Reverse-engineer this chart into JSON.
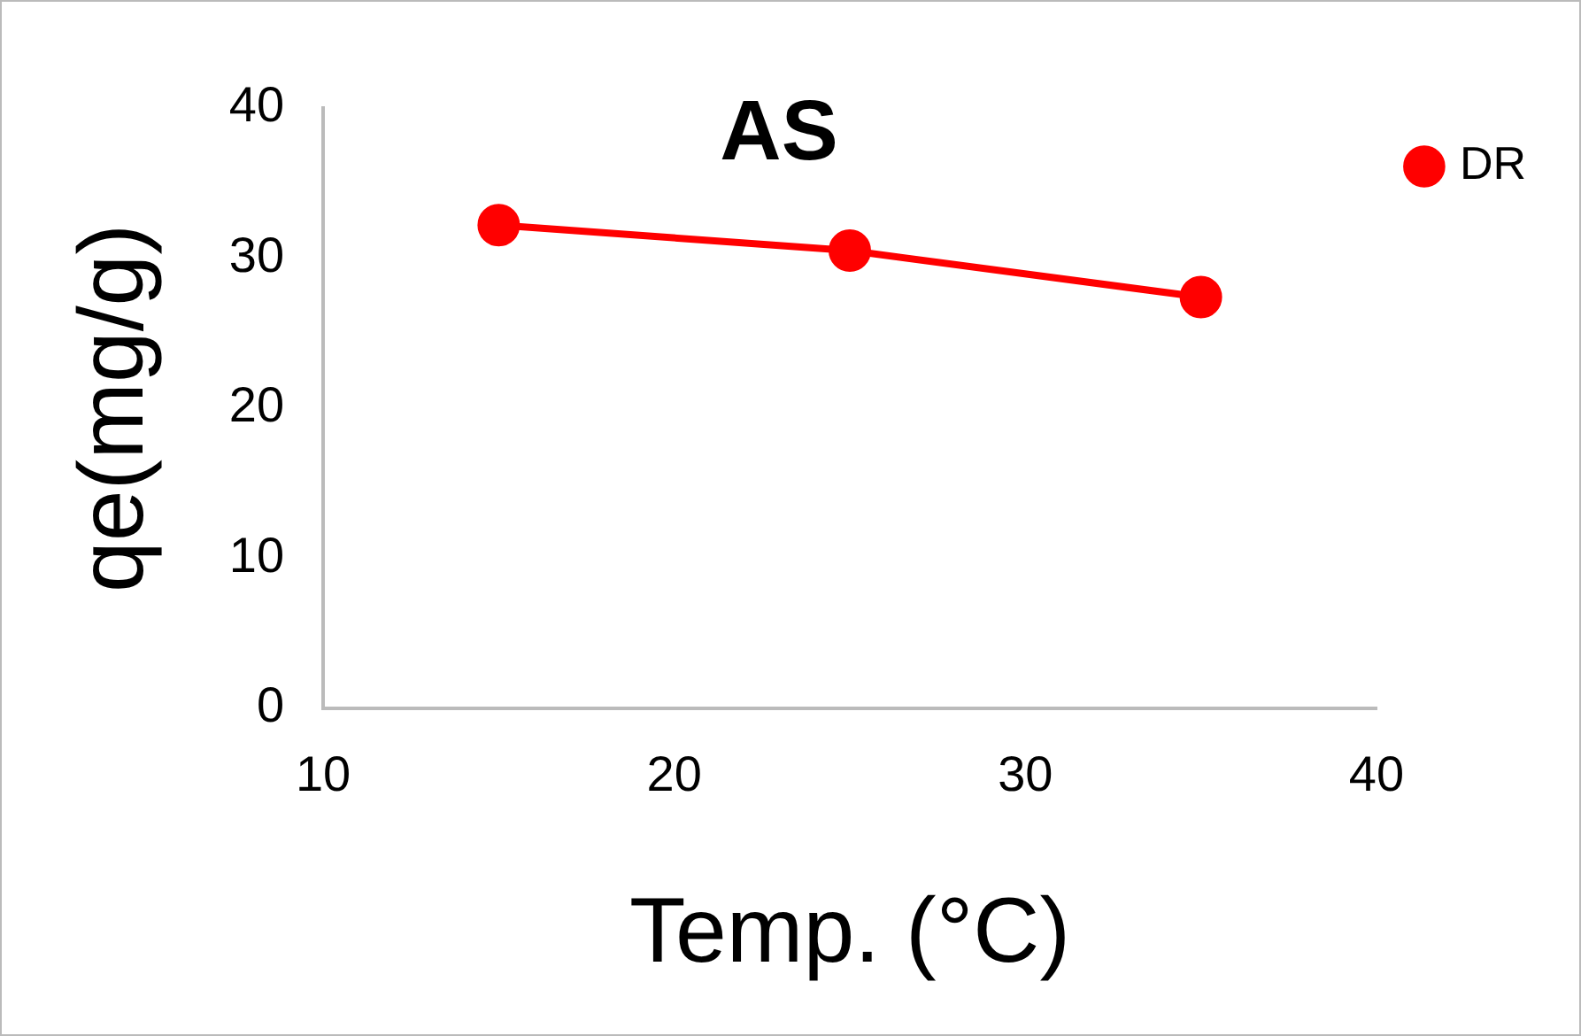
{
  "chart_data": {
    "type": "line",
    "title": "AS",
    "xlabel": "Temp. (°C)",
    "ylabel": "qe(mg/g)",
    "x": [
      15,
      25,
      35
    ],
    "series": [
      {
        "name": "DR",
        "color": "#ff0000",
        "values": [
          32.2,
          30.5,
          27.4
        ]
      }
    ],
    "xlim": [
      10,
      40
    ],
    "xticks": [
      10,
      20,
      30,
      40
    ],
    "ylim": [
      0,
      40
    ],
    "yticks": [
      0,
      10,
      20,
      30,
      40
    ],
    "grid": false,
    "legend": "top right",
    "marker": "circle",
    "line_style": "solid"
  }
}
